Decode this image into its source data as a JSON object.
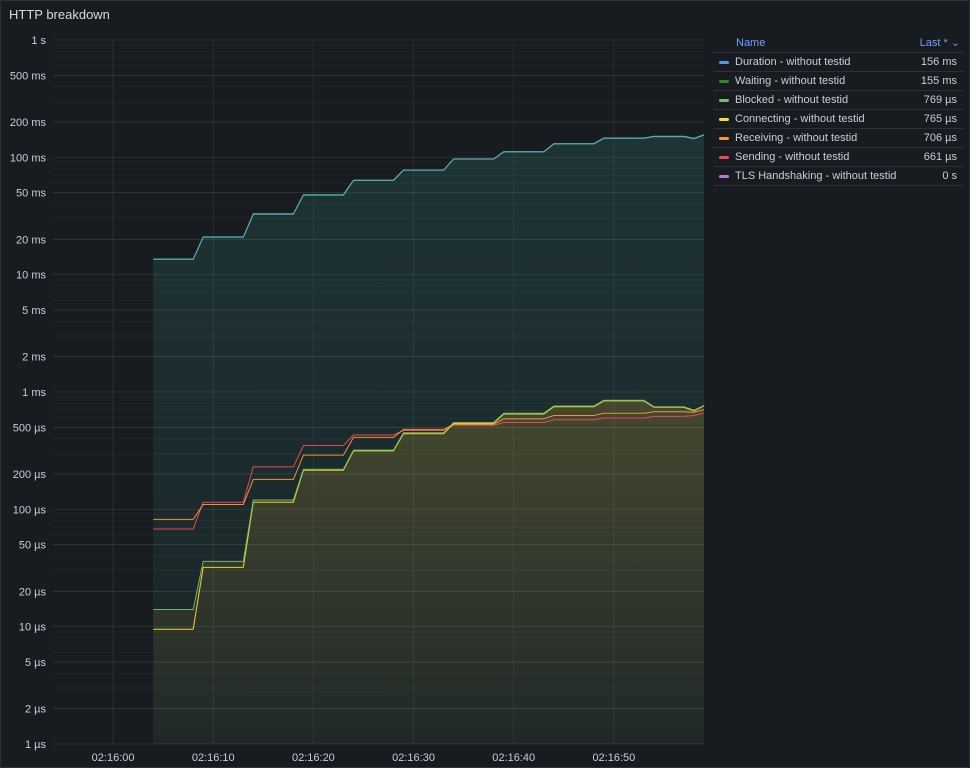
{
  "panel": {
    "title": "HTTP breakdown"
  },
  "legend": {
    "name_header": "Name",
    "last_header": "Last * ⌄",
    "items": [
      {
        "label": "Duration - without testid",
        "last": "156 ms",
        "color": "#5794f2"
      },
      {
        "label": "Waiting - without testid",
        "last": "155 ms",
        "color": "#37872d"
      },
      {
        "label": "Blocked - without testid",
        "last": "769 µs",
        "color": "#73bf69"
      },
      {
        "label": "Connecting - without testid",
        "last": "765 µs",
        "color": "#fade2a"
      },
      {
        "label": "Receiving - without testid",
        "last": "706 µs",
        "color": "#ff9830"
      },
      {
        "label": "Sending - without testid",
        "last": "661 µs",
        "color": "#f2495c"
      },
      {
        "label": "TLS Handshaking - without testid",
        "last": "0 s",
        "color": "#b877d9"
      }
    ]
  },
  "chart_data": {
    "type": "line",
    "y_scale": "log",
    "y_unit": "seconds",
    "ylim": [
      1e-06,
      1
    ],
    "y_ticks": [
      {
        "v": 1,
        "label": "1 s"
      },
      {
        "v": 0.5,
        "label": "500 ms"
      },
      {
        "v": 0.2,
        "label": "200 ms"
      },
      {
        "v": 0.1,
        "label": "100 ms"
      },
      {
        "v": 0.05,
        "label": "50 ms"
      },
      {
        "v": 0.02,
        "label": "20 ms"
      },
      {
        "v": 0.01,
        "label": "10 ms"
      },
      {
        "v": 0.005,
        "label": "5 ms"
      },
      {
        "v": 0.002,
        "label": "2 ms"
      },
      {
        "v": 0.001,
        "label": "1 ms"
      },
      {
        "v": 0.0005,
        "label": "500 µs"
      },
      {
        "v": 0.0002,
        "label": "200 µs"
      },
      {
        "v": 0.0001,
        "label": "100 µs"
      },
      {
        "v": 5e-05,
        "label": "50 µs"
      },
      {
        "v": 2e-05,
        "label": "20 µs"
      },
      {
        "v": 1e-05,
        "label": "10 µs"
      },
      {
        "v": 5e-06,
        "label": "5 µs"
      },
      {
        "v": 2e-06,
        "label": "2 µs"
      },
      {
        "v": 1e-06,
        "label": "1 µs"
      }
    ],
    "x_unit": "time (hh:mm:ss)",
    "x_ticks": [
      "02:16:00",
      "02:16:10",
      "02:16:20",
      "02:16:30",
      "02:16:40",
      "02:16:50"
    ],
    "xlim": [
      "02:15:54",
      "02:16:59"
    ],
    "series": [
      {
        "name": "Duration - without testid",
        "color": "#5794f2",
        "points": [
          [
            "02:16:04",
            0.0136
          ],
          [
            "02:16:08",
            0.0136
          ],
          [
            "02:16:09",
            0.021
          ],
          [
            "02:16:13",
            0.021
          ],
          [
            "02:16:14",
            0.033
          ],
          [
            "02:16:18",
            0.033
          ],
          [
            "02:16:19",
            0.048
          ],
          [
            "02:16:23",
            0.048
          ],
          [
            "02:16:24",
            0.064
          ],
          [
            "02:16:28",
            0.064
          ],
          [
            "02:16:29",
            0.078
          ],
          [
            "02:16:33",
            0.078
          ],
          [
            "02:16:34",
            0.097
          ],
          [
            "02:16:38",
            0.097
          ],
          [
            "02:16:39",
            0.112
          ],
          [
            "02:16:43",
            0.112
          ],
          [
            "02:16:44",
            0.131
          ],
          [
            "02:16:48",
            0.131
          ],
          [
            "02:16:49",
            0.146
          ],
          [
            "02:16:53",
            0.146
          ],
          [
            "02:16:54",
            0.151
          ],
          [
            "02:16:57",
            0.151
          ],
          [
            "02:16:58",
            0.145
          ],
          [
            "02:16:59",
            0.156
          ]
        ]
      },
      {
        "name": "Waiting - without testid",
        "color": "#37872d",
        "points": [
          [
            "02:16:04",
            0.0135
          ],
          [
            "02:16:08",
            0.0135
          ],
          [
            "02:16:09",
            0.0208
          ],
          [
            "02:16:13",
            0.0208
          ],
          [
            "02:16:14",
            0.0327
          ],
          [
            "02:16:18",
            0.0327
          ],
          [
            "02:16:19",
            0.0476
          ],
          [
            "02:16:23",
            0.0476
          ],
          [
            "02:16:24",
            0.0635
          ],
          [
            "02:16:28",
            0.0635
          ],
          [
            "02:16:29",
            0.0775
          ],
          [
            "02:16:33",
            0.0775
          ],
          [
            "02:16:34",
            0.0965
          ],
          [
            "02:16:38",
            0.0965
          ],
          [
            "02:16:39",
            0.111
          ],
          [
            "02:16:43",
            0.111
          ],
          [
            "02:16:44",
            0.13
          ],
          [
            "02:16:48",
            0.13
          ],
          [
            "02:16:49",
            0.145
          ],
          [
            "02:16:53",
            0.145
          ],
          [
            "02:16:54",
            0.15
          ],
          [
            "02:16:57",
            0.15
          ],
          [
            "02:16:58",
            0.144
          ],
          [
            "02:16:59",
            0.155
          ]
        ]
      },
      {
        "name": "Blocked - without testid",
        "color": "#73bf69",
        "points": [
          [
            "02:16:04",
            1.4e-05
          ],
          [
            "02:16:08",
            1.4e-05
          ],
          [
            "02:16:09",
            3.6e-05
          ],
          [
            "02:16:13",
            3.6e-05
          ],
          [
            "02:16:14",
            0.00012
          ],
          [
            "02:16:18",
            0.00012
          ],
          [
            "02:16:19",
            0.00022
          ],
          [
            "02:16:23",
            0.00022
          ],
          [
            "02:16:24",
            0.00032
          ],
          [
            "02:16:28",
            0.00032
          ],
          [
            "02:16:29",
            0.00045
          ],
          [
            "02:16:33",
            0.00045
          ],
          [
            "02:16:34",
            0.00055
          ],
          [
            "02:16:38",
            0.00055
          ],
          [
            "02:16:39",
            0.00066
          ],
          [
            "02:16:43",
            0.00066
          ],
          [
            "02:16:44",
            0.00076
          ],
          [
            "02:16:48",
            0.00076
          ],
          [
            "02:16:49",
            0.00085
          ],
          [
            "02:16:53",
            0.00085
          ],
          [
            "02:16:54",
            0.00075
          ],
          [
            "02:16:57",
            0.00075
          ],
          [
            "02:16:58",
            0.0007
          ],
          [
            "02:16:59",
            0.000769
          ]
        ]
      },
      {
        "name": "Connecting - without testid",
        "color": "#fade2a",
        "points": [
          [
            "02:16:04",
            9.5e-06
          ],
          [
            "02:16:08",
            9.5e-06
          ],
          [
            "02:16:09",
            3.2e-05
          ],
          [
            "02:16:13",
            3.2e-05
          ],
          [
            "02:16:14",
            0.000115
          ],
          [
            "02:16:18",
            0.000115
          ],
          [
            "02:16:19",
            0.000215
          ],
          [
            "02:16:23",
            0.000215
          ],
          [
            "02:16:24",
            0.000315
          ],
          [
            "02:16:28",
            0.000315
          ],
          [
            "02:16:29",
            0.00044
          ],
          [
            "02:16:33",
            0.00044
          ],
          [
            "02:16:34",
            0.00054
          ],
          [
            "02:16:38",
            0.00054
          ],
          [
            "02:16:39",
            0.00065
          ],
          [
            "02:16:43",
            0.00065
          ],
          [
            "02:16:44",
            0.00075
          ],
          [
            "02:16:48",
            0.00075
          ],
          [
            "02:16:49",
            0.00084
          ],
          [
            "02:16:53",
            0.00084
          ],
          [
            "02:16:54",
            0.00074
          ],
          [
            "02:16:57",
            0.00074
          ],
          [
            "02:16:58",
            0.00069
          ],
          [
            "02:16:59",
            0.000765
          ]
        ]
      },
      {
        "name": "Receiving - without testid",
        "color": "#ff9830",
        "points": [
          [
            "02:16:04",
            8.2e-05
          ],
          [
            "02:16:08",
            8.2e-05
          ],
          [
            "02:16:09",
            0.00011
          ],
          [
            "02:16:13",
            0.00011
          ],
          [
            "02:16:14",
            0.00018
          ],
          [
            "02:16:18",
            0.00018
          ],
          [
            "02:16:19",
            0.00029
          ],
          [
            "02:16:23",
            0.00029
          ],
          [
            "02:16:24",
            0.00041
          ],
          [
            "02:16:28",
            0.00041
          ],
          [
            "02:16:29",
            0.00048
          ],
          [
            "02:16:33",
            0.00048
          ],
          [
            "02:16:34",
            0.00053
          ],
          [
            "02:16:38",
            0.00053
          ],
          [
            "02:16:39",
            0.00059
          ],
          [
            "02:16:43",
            0.00059
          ],
          [
            "02:16:44",
            0.00063
          ],
          [
            "02:16:48",
            0.00063
          ],
          [
            "02:16:49",
            0.00066
          ],
          [
            "02:16:53",
            0.00066
          ],
          [
            "02:16:54",
            0.00068
          ],
          [
            "02:16:57",
            0.00068
          ],
          [
            "02:16:58",
            0.00067
          ],
          [
            "02:16:59",
            0.000706
          ]
        ]
      },
      {
        "name": "Sending - without testid",
        "color": "#f2495c",
        "points": [
          [
            "02:16:04",
            6.8e-05
          ],
          [
            "02:16:08",
            6.8e-05
          ],
          [
            "02:16:09",
            0.000115
          ],
          [
            "02:16:13",
            0.000115
          ],
          [
            "02:16:14",
            0.00023
          ],
          [
            "02:16:18",
            0.00023
          ],
          [
            "02:16:19",
            0.00035
          ],
          [
            "02:16:23",
            0.00035
          ],
          [
            "02:16:24",
            0.00043
          ],
          [
            "02:16:28",
            0.00043
          ],
          [
            "02:16:29",
            0.00047
          ],
          [
            "02:16:33",
            0.00047
          ],
          [
            "02:16:34",
            0.00052
          ],
          [
            "02:16:38",
            0.00052
          ],
          [
            "02:16:39",
            0.00055
          ],
          [
            "02:16:43",
            0.00055
          ],
          [
            "02:16:44",
            0.00058
          ],
          [
            "02:16:48",
            0.00058
          ],
          [
            "02:16:49",
            0.0006
          ],
          [
            "02:16:53",
            0.0006
          ],
          [
            "02:16:54",
            0.00062
          ],
          [
            "02:16:57",
            0.00062
          ],
          [
            "02:16:58",
            0.00063
          ],
          [
            "02:16:59",
            0.000661
          ]
        ]
      }
    ]
  }
}
